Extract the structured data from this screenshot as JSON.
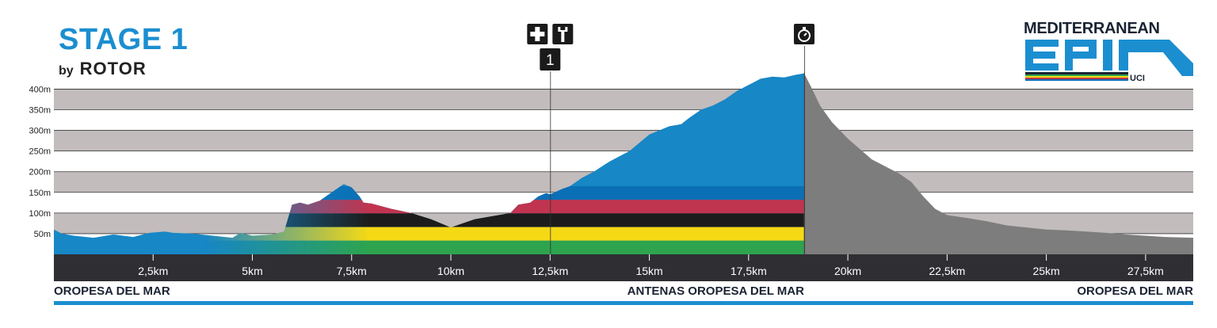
{
  "header": {
    "stage_title": "STAGE 1",
    "sponsor_by": "by",
    "sponsor_name": "ROTOR"
  },
  "logo": {
    "name": "MEDITERRANEAN",
    "mark": "EPIC",
    "badge": "UCI",
    "colors": [
      "#1b8ed0",
      "#1a2333"
    ]
  },
  "markers": [
    {
      "km": 12.5,
      "icons": [
        "first-aid-icon",
        "wrench-icon"
      ],
      "label": "1"
    },
    {
      "km": 18.9,
      "icons": [
        "stopwatch-icon"
      ],
      "label": ""
    }
  ],
  "waypoints": [
    {
      "name": "OROPESA DEL MAR",
      "align": "start"
    },
    {
      "name": "ANTENAS OROPESA DEL MAR",
      "align": "end-at-summit"
    },
    {
      "name": "OROPESA DEL MAR",
      "align": "end"
    }
  ],
  "chart_data": {
    "type": "area",
    "xlim": [
      0,
      28.7
    ],
    "ylim": [
      0,
      420
    ],
    "yticks": [
      50,
      100,
      150,
      200,
      250,
      300,
      350,
      400
    ],
    "ytick_labels": [
      "50m",
      "100m",
      "150m",
      "200m",
      "250m",
      "300m",
      "350m",
      "400m"
    ],
    "xticks": [
      2.5,
      5,
      7.5,
      10,
      12.5,
      15,
      17.5,
      20,
      22.5,
      25,
      27.5
    ],
    "xtick_labels": [
      "2,5km",
      "5km",
      "7,5km",
      "10km",
      "12,5km",
      "15km",
      "17,5km",
      "20km",
      "22,5km",
      "25km",
      "27,5km"
    ],
    "summit_km": 18.9,
    "grid": true,
    "colors": {
      "climb": "#1787c6",
      "descent": "#7d7d7d",
      "grid_band": "#c2bcbc",
      "axis_bar": "#2f2f33",
      "rule": "#1b8ed0",
      "stripes": [
        "#0b6fb6",
        "#c0344f",
        "#1c1c1c",
        "#f5d915",
        "#2ea44f"
      ]
    },
    "series": [
      {
        "x": [
          0,
          0.2,
          0.5,
          1,
          1.5,
          2,
          2.4,
          2.8,
          3,
          3.5,
          4,
          4.5,
          4.7,
          5,
          5.5,
          5.8,
          6,
          6.2,
          6.4,
          6.7,
          7,
          7.3,
          7.5,
          7.7,
          7.8,
          8,
          8.5,
          9,
          9.5,
          10,
          10.3,
          10.6,
          10.9,
          11.2,
          11.5,
          11.7,
          12,
          12.2,
          12.4,
          12.5,
          12.8,
          13,
          13.3,
          13.6,
          14,
          14.5,
          15,
          15.5,
          15.8,
          16,
          16.3,
          16.6,
          16.9,
          17.2,
          17.5,
          17.8,
          18.1,
          18.4,
          18.7,
          18.9,
          19.1,
          19.3,
          19.6,
          20,
          20.3,
          20.6,
          21,
          21.3,
          21.6,
          21.9,
          22.2,
          22.5,
          23,
          23.5,
          24,
          24.5,
          25,
          25.5,
          26,
          26.5,
          27,
          27.5,
          28,
          28.7
        ],
        "y": [
          60,
          50,
          45,
          40,
          48,
          42,
          52,
          55,
          52,
          50,
          45,
          40,
          52,
          45,
          48,
          55,
          120,
          125,
          120,
          130,
          150,
          170,
          162,
          140,
          125,
          123,
          110,
          100,
          85,
          65,
          75,
          85,
          90,
          95,
          100,
          120,
          125,
          140,
          148,
          145,
          158,
          165,
          185,
          200,
          225,
          250,
          290,
          310,
          315,
          330,
          350,
          360,
          375,
          395,
          410,
          425,
          430,
          428,
          435,
          438,
          400,
          360,
          320,
          280,
          255,
          230,
          210,
          195,
          175,
          140,
          110,
          95,
          88,
          80,
          70,
          65,
          60,
          58,
          55,
          52,
          48,
          45,
          42,
          40
        ]
      }
    ]
  }
}
